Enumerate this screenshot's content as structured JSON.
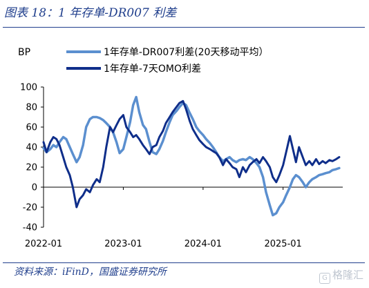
{
  "header": {
    "title": "图表 18：1 年存单-DR007 利差"
  },
  "footer": {
    "source": "资料来源：iFinD，国盛证券研究所",
    "watermark": "格隆汇"
  },
  "chart_data": {
    "type": "line",
    "ylabel": "BP",
    "ylim": [
      -40,
      100
    ],
    "yticks": [
      -40,
      -20,
      0,
      20,
      40,
      60,
      80,
      100
    ],
    "xlim": [
      "2022-01",
      "2025-10"
    ],
    "xticks": [
      "2022-01",
      "2023-01",
      "2024-01",
      "2025-01"
    ],
    "grid": false,
    "legend": "top-left",
    "series": [
      {
        "name": "1年存单-DR007利差(20天移动平均）",
        "color": "#5b8fcf",
        "width": 3.5,
        "points": [
          [
            "2022-01",
            39
          ],
          [
            "2022-01-15",
            35
          ],
          [
            "2022-02",
            38
          ],
          [
            "2022-02-15",
            42
          ],
          [
            "2022-03",
            40
          ],
          [
            "2022-03-15",
            45
          ],
          [
            "2022-04",
            50
          ],
          [
            "2022-04-15",
            48
          ],
          [
            "2022-05",
            40
          ],
          [
            "2022-05-15",
            33
          ],
          [
            "2022-06",
            25
          ],
          [
            "2022-06-15",
            30
          ],
          [
            "2022-07",
            42
          ],
          [
            "2022-07-15",
            60
          ],
          [
            "2022-08",
            68
          ],
          [
            "2022-08-15",
            70
          ],
          [
            "2022-09",
            70
          ],
          [
            "2022-09-15",
            69
          ],
          [
            "2022-10",
            67
          ],
          [
            "2022-10-15",
            64
          ],
          [
            "2022-11",
            60
          ],
          [
            "2022-11-15",
            55
          ],
          [
            "2022-12",
            45
          ],
          [
            "2022-12-15",
            34
          ],
          [
            "2023-01",
            38
          ],
          [
            "2023-01-15",
            50
          ],
          [
            "2023-02",
            65
          ],
          [
            "2023-02-15",
            82
          ],
          [
            "2023-03",
            90
          ],
          [
            "2023-03-15",
            75
          ],
          [
            "2023-04",
            62
          ],
          [
            "2023-04-15",
            58
          ],
          [
            "2023-05",
            45
          ],
          [
            "2023-05-15",
            35
          ],
          [
            "2023-06",
            33
          ],
          [
            "2023-06-15",
            38
          ],
          [
            "2023-07",
            46
          ],
          [
            "2023-07-15",
            55
          ],
          [
            "2023-08",
            65
          ],
          [
            "2023-08-15",
            72
          ],
          [
            "2023-09",
            76
          ],
          [
            "2023-09-15",
            80
          ],
          [
            "2023-10",
            84
          ],
          [
            "2023-10-15",
            82
          ],
          [
            "2023-11",
            74
          ],
          [
            "2023-11-15",
            68
          ],
          [
            "2023-12",
            60
          ],
          [
            "2023-12-15",
            56
          ],
          [
            "2024-01",
            52
          ],
          [
            "2024-01-15",
            48
          ],
          [
            "2024-02",
            44
          ],
          [
            "2024-02-15",
            40
          ],
          [
            "2024-03",
            35
          ],
          [
            "2024-03-15",
            30
          ],
          [
            "2024-04",
            26
          ],
          [
            "2024-04-15",
            28
          ],
          [
            "2024-05",
            30
          ],
          [
            "2024-05-15",
            27
          ],
          [
            "2024-06",
            25
          ],
          [
            "2024-06-15",
            27
          ],
          [
            "2024-07",
            28
          ],
          [
            "2024-07-15",
            27
          ],
          [
            "2024-08",
            30
          ],
          [
            "2024-08-15",
            28
          ],
          [
            "2024-09",
            24
          ],
          [
            "2024-09-15",
            20
          ],
          [
            "2024-10",
            10
          ],
          [
            "2024-10-15",
            -5
          ],
          [
            "2024-11",
            -18
          ],
          [
            "2024-11-15",
            -28
          ],
          [
            "2024-12",
            -26
          ],
          [
            "2024-12-15",
            -20
          ],
          [
            "2025-01",
            -15
          ],
          [
            "2025-01-15",
            -8
          ],
          [
            "2025-02",
            0
          ],
          [
            "2025-02-15",
            8
          ],
          [
            "2025-03",
            12
          ],
          [
            "2025-03-15",
            10
          ],
          [
            "2025-04",
            5
          ],
          [
            "2025-04-15",
            0
          ],
          [
            "2025-05",
            5
          ],
          [
            "2025-05-15",
            8
          ],
          [
            "2025-06",
            10
          ],
          [
            "2025-06-15",
            12
          ],
          [
            "2025-07",
            13
          ],
          [
            "2025-07-15",
            14
          ],
          [
            "2025-08",
            15
          ],
          [
            "2025-08-15",
            17
          ],
          [
            "2025-09",
            18
          ],
          [
            "2025-09-15",
            19
          ]
        ]
      },
      {
        "name": "1年存单-7天OMO利差",
        "color": "#0f2e8a",
        "width": 3,
        "points": [
          [
            "2022-01",
            45
          ],
          [
            "2022-01-15",
            35
          ],
          [
            "2022-02",
            45
          ],
          [
            "2022-02-15",
            50
          ],
          [
            "2022-03",
            48
          ],
          [
            "2022-03-15",
            42
          ],
          [
            "2022-04",
            30
          ],
          [
            "2022-04-15",
            20
          ],
          [
            "2022-05",
            12
          ],
          [
            "2022-05-15",
            0
          ],
          [
            "2022-06",
            -20
          ],
          [
            "2022-06-15",
            -12
          ],
          [
            "2022-07",
            -8
          ],
          [
            "2022-07-15",
            -2
          ],
          [
            "2022-08",
            -5
          ],
          [
            "2022-08-15",
            2
          ],
          [
            "2022-09",
            8
          ],
          [
            "2022-09-15",
            5
          ],
          [
            "2022-10",
            20
          ],
          [
            "2022-10-15",
            40
          ],
          [
            "2022-11",
            60
          ],
          [
            "2022-11-15",
            55
          ],
          [
            "2022-12",
            62
          ],
          [
            "2022-12-15",
            68
          ],
          [
            "2023-01",
            72
          ],
          [
            "2023-01-15",
            60
          ],
          [
            "2023-02",
            55
          ],
          [
            "2023-02-15",
            50
          ],
          [
            "2023-03",
            52
          ],
          [
            "2023-03-15",
            48
          ],
          [
            "2023-04",
            42
          ],
          [
            "2023-04-15",
            38
          ],
          [
            "2023-05",
            33
          ],
          [
            "2023-05-15",
            40
          ],
          [
            "2023-06",
            42
          ],
          [
            "2023-06-15",
            50
          ],
          [
            "2023-07",
            56
          ],
          [
            "2023-07-15",
            64
          ],
          [
            "2023-08",
            70
          ],
          [
            "2023-08-15",
            75
          ],
          [
            "2023-09",
            80
          ],
          [
            "2023-09-15",
            84
          ],
          [
            "2023-10",
            86
          ],
          [
            "2023-10-15",
            78
          ],
          [
            "2023-11",
            66
          ],
          [
            "2023-11-15",
            58
          ],
          [
            "2023-12",
            52
          ],
          [
            "2023-12-15",
            47
          ],
          [
            "2024-01",
            43
          ],
          [
            "2024-01-15",
            40
          ],
          [
            "2024-02",
            38
          ],
          [
            "2024-02-15",
            36
          ],
          [
            "2024-03",
            34
          ],
          [
            "2024-03-15",
            30
          ],
          [
            "2024-04",
            22
          ],
          [
            "2024-04-15",
            28
          ],
          [
            "2024-05",
            24
          ],
          [
            "2024-05-15",
            20
          ],
          [
            "2024-06",
            18
          ],
          [
            "2024-06-15",
            10
          ],
          [
            "2024-07",
            20
          ],
          [
            "2024-07-15",
            15
          ],
          [
            "2024-08",
            22
          ],
          [
            "2024-08-15",
            25
          ],
          [
            "2024-09",
            28
          ],
          [
            "2024-09-15",
            24
          ],
          [
            "2024-10",
            30
          ],
          [
            "2024-10-15",
            26
          ],
          [
            "2024-11",
            20
          ],
          [
            "2024-11-15",
            10
          ],
          [
            "2024-12",
            5
          ],
          [
            "2024-12-15",
            12
          ],
          [
            "2025-01",
            22
          ],
          [
            "2025-01-15",
            35
          ],
          [
            "2025-02",
            51
          ],
          [
            "2025-02-15",
            38
          ],
          [
            "2025-03",
            25
          ],
          [
            "2025-03-15",
            40
          ],
          [
            "2025-04",
            30
          ],
          [
            "2025-04-15",
            22
          ],
          [
            "2025-05",
            26
          ],
          [
            "2025-05-15",
            22
          ],
          [
            "2025-06",
            28
          ],
          [
            "2025-06-15",
            23
          ],
          [
            "2025-07",
            26
          ],
          [
            "2025-07-15",
            24
          ],
          [
            "2025-08",
            27
          ],
          [
            "2025-08-15",
            26
          ],
          [
            "2025-09",
            28
          ],
          [
            "2025-09-15",
            30
          ]
        ]
      }
    ]
  }
}
